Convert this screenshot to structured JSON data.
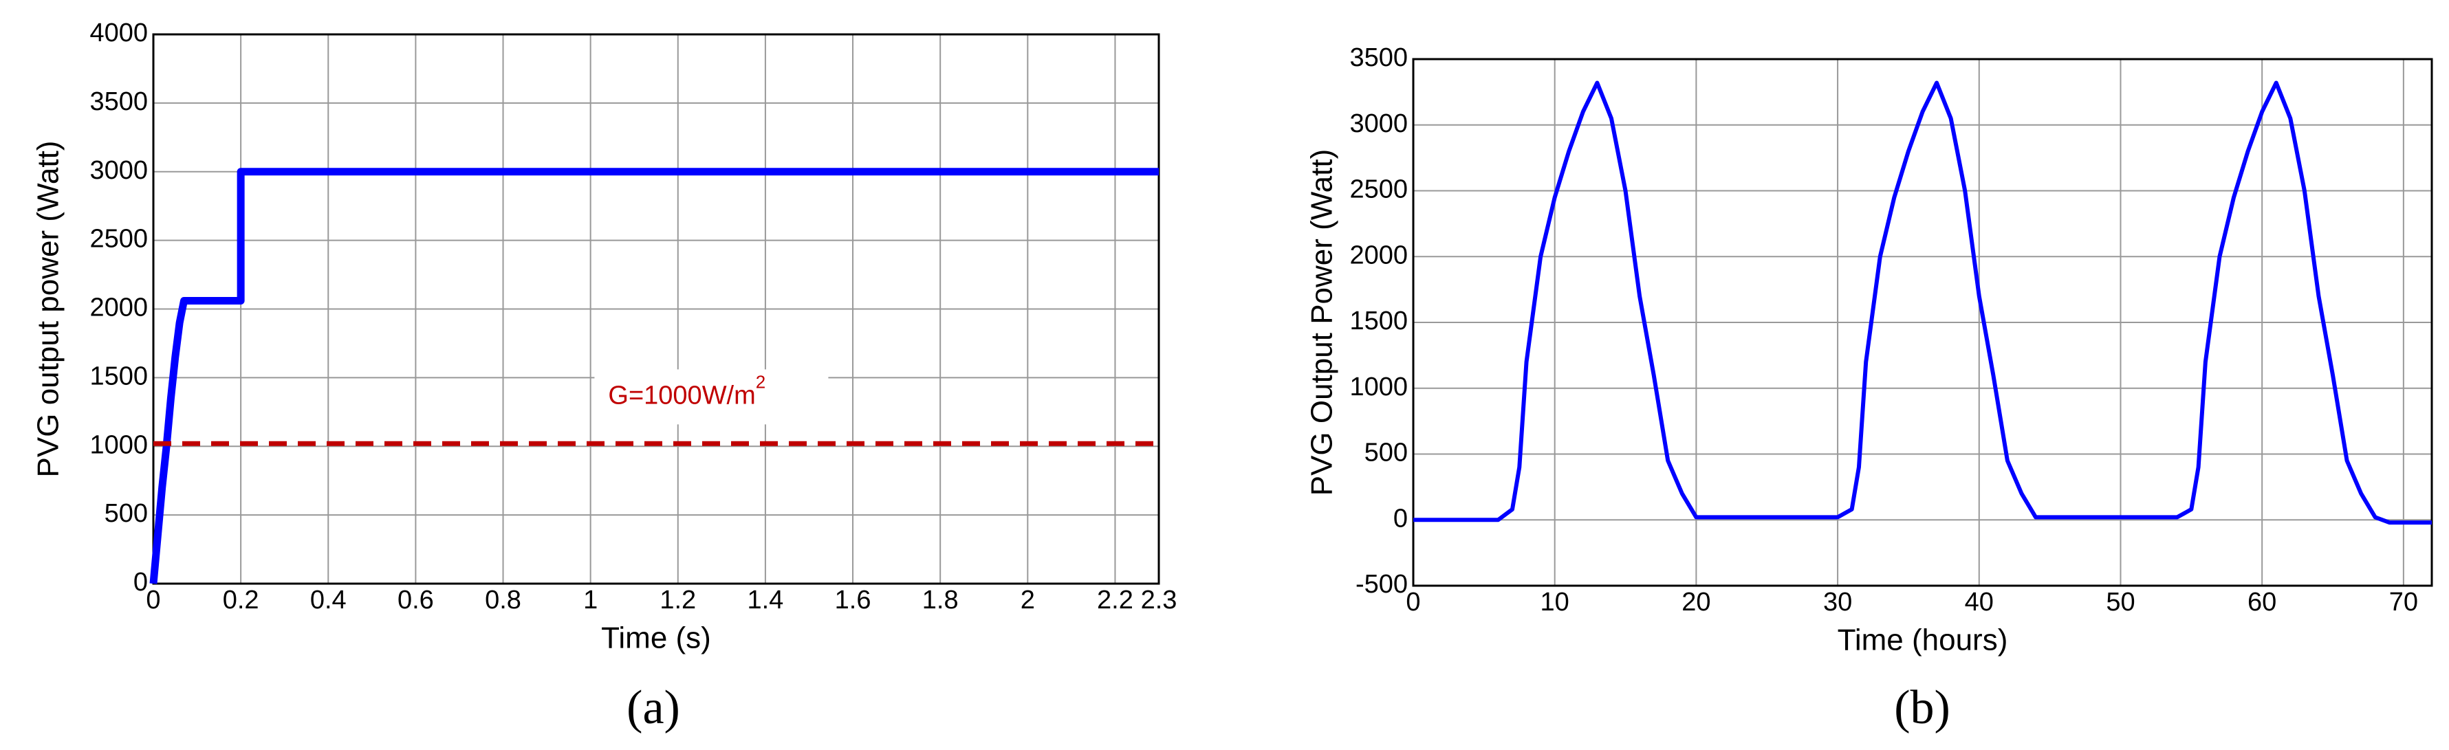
{
  "chart_data": [
    {
      "type": "line",
      "caption": "(a)",
      "x_label": "Time (s)",
      "y_label": "PVG output power (Watt)",
      "xlim": [
        0,
        2.3
      ],
      "xticks": [
        0,
        0.2,
        0.4,
        0.6,
        0.8,
        1,
        1.2,
        1.4,
        1.6,
        1.8,
        2,
        2.2,
        2.3
      ],
      "ylim": [
        0,
        4000
      ],
      "yticks": [
        0,
        500,
        1000,
        1500,
        2000,
        2500,
        3000,
        3500,
        4000
      ],
      "grid": true,
      "annotation": {
        "text": "G=1000W/m",
        "superscript": "2",
        "color": "#c00000"
      },
      "series": [
        {
          "color": "#0000ff",
          "x": [
            0,
            0.01,
            0.02,
            0.03,
            0.04,
            0.05,
            0.06,
            0.07,
            0.2,
            0.2,
            2.3
          ],
          "values": [
            0,
            350,
            700,
            1000,
            1350,
            1650,
            1900,
            2060,
            2060,
            3000,
            3000
          ]
        },
        {
          "color": "#c00000",
          "dashed": true,
          "x": [
            0,
            2.3
          ],
          "values": [
            1020,
            1020
          ]
        }
      ]
    },
    {
      "type": "line",
      "caption": "(b)",
      "x_label": "Time (hours)",
      "y_label": "PVG Output Power (Watt)",
      "xlim": [
        0,
        72
      ],
      "xticks": [
        0,
        10,
        20,
        30,
        40,
        50,
        60,
        70
      ],
      "ylim": [
        -500,
        3500
      ],
      "yticks": [
        -500,
        0,
        500,
        1000,
        1500,
        2000,
        2500,
        3000,
        3500
      ],
      "grid": true,
      "series": [
        {
          "color": "#0000ff",
          "x": [
            0,
            6,
            7,
            7.5,
            8,
            9,
            10,
            11,
            12,
            13,
            14,
            15,
            16,
            17,
            18,
            19,
            20,
            30,
            31,
            31.5,
            32,
            33,
            34,
            35,
            36,
            37,
            38,
            39,
            40,
            41,
            42,
            43,
            44,
            54,
            55,
            55.5,
            56,
            57,
            58,
            59,
            60,
            61,
            62,
            63,
            64,
            65,
            66,
            67,
            68,
            69,
            72
          ],
          "values": [
            0,
            0,
            80,
            400,
            1200,
            2000,
            2450,
            2800,
            3100,
            3320,
            3050,
            2500,
            1700,
            1100,
            450,
            200,
            20,
            20,
            80,
            400,
            1200,
            2000,
            2450,
            2800,
            3100,
            3320,
            3050,
            2500,
            1700,
            1100,
            450,
            200,
            20,
            20,
            80,
            400,
            1200,
            2000,
            2450,
            2800,
            3100,
            3320,
            3050,
            2500,
            1700,
            1100,
            450,
            200,
            20,
            -20,
            -20
          ]
        }
      ]
    }
  ]
}
